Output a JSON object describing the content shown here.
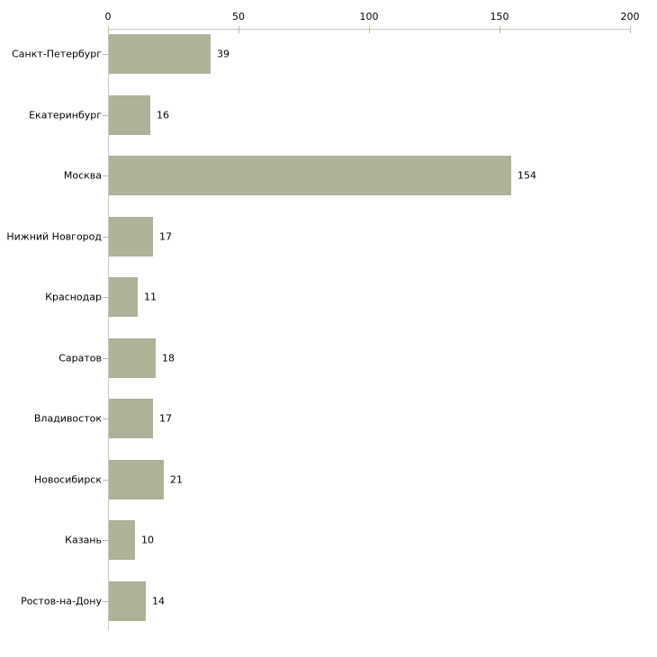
{
  "chart_data": {
    "type": "bar",
    "orientation": "horizontal",
    "title": "",
    "xlabel": "",
    "ylabel": "",
    "categories": [
      "Санкт-Петербург",
      "Екатеринбург",
      "Москва",
      "Нижний Новгород",
      "Краснодар",
      "Саратов",
      "Владивосток",
      "Новосибирск",
      "Казань",
      "Ростов-на-Дону"
    ],
    "values": [
      39,
      16,
      154,
      17,
      11,
      18,
      17,
      21,
      10,
      14
    ],
    "value_labels": [
      "39",
      "16",
      "154",
      "17",
      "11",
      "18",
      "17",
      "21",
      "10",
      "14"
    ],
    "x_axis": {
      "position": "top",
      "ticks": [
        "0",
        "50",
        "100",
        "150",
        "200"
      ],
      "tick_values": [
        0,
        50,
        100,
        150,
        200
      ],
      "range": [
        0,
        200
      ]
    },
    "grid": false,
    "legend": false,
    "show_value_labels": true,
    "colors": {
      "bar": "#adb298",
      "axis_line": "#c8c8c8",
      "tick_mark": "#bebe90",
      "text": "#000000",
      "background": "#ffffff"
    }
  }
}
